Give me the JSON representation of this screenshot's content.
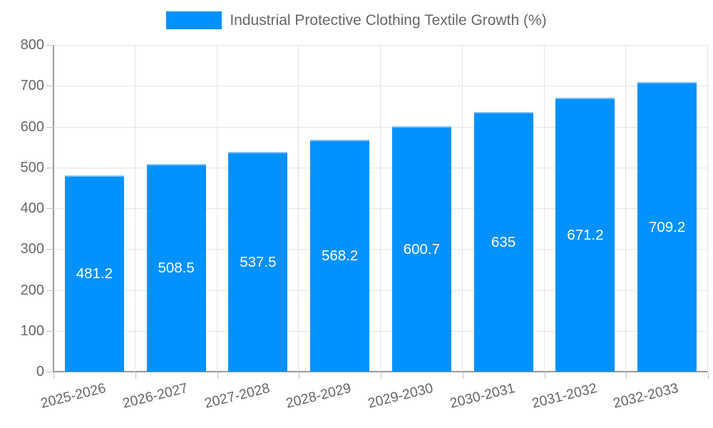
{
  "chart_data": {
    "type": "bar",
    "title": "",
    "legend": "Industrial Protective Clothing Textile Growth (%)",
    "legend_position": "top",
    "categories": [
      "2025-2026",
      "2026-2027",
      "2027-2028",
      "2028-2029",
      "2029-2030",
      "2030-2031",
      "2031-2032",
      "2032-2033"
    ],
    "values": [
      481.2,
      508.5,
      537.5,
      568.2,
      600.7,
      635,
      671.2,
      709.2
    ],
    "bar_labels": [
      "481.2",
      "508.5",
      "537.5",
      "568.2",
      "600.7",
      "635",
      "671.2",
      "709.2"
    ],
    "xlabel": "",
    "ylabel": "",
    "ylim": [
      0,
      800
    ],
    "ytick_step": 100,
    "ytick_labels": [
      "0",
      "100",
      "200",
      "300",
      "400",
      "500",
      "600",
      "700",
      "800"
    ],
    "grid": true,
    "colors": {
      "bar": "#0291fd",
      "bar_border": "#7dbdf3",
      "value_label": "#ffffff",
      "axis_text": "#666666",
      "grid_line": "#e3e3e3",
      "axis_line": "#9a9a9a",
      "background": "#ffffff"
    }
  }
}
